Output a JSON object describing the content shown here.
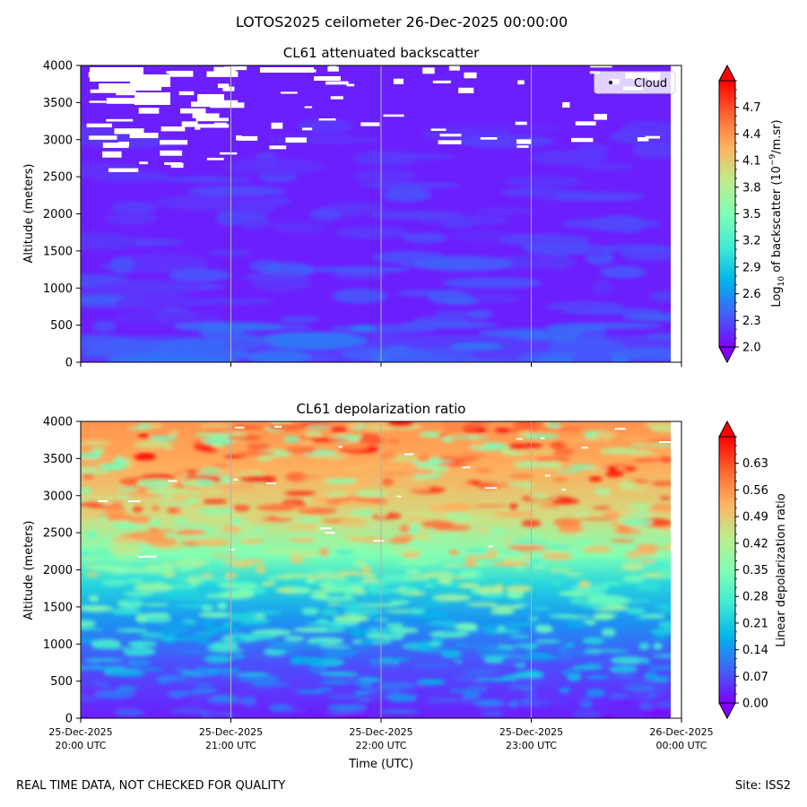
{
  "suptitle": "LOTOS2025 ceilometer 26-Dec-2025 00:00:00",
  "footer_left": "REAL TIME DATA, NOT CHECKED FOR QUALITY",
  "footer_right": "Site: ISS2",
  "xlabel": "Time (UTC)",
  "x_ticks": [
    {
      "line1": "25-Dec-2025",
      "line2": "20:00 UTC"
    },
    {
      "line1": "25-Dec-2025",
      "line2": "21:00 UTC"
    },
    {
      "line1": "25-Dec-2025",
      "line2": "22:00 UTC"
    },
    {
      "line1": "25-Dec-2025",
      "line2": "23:00 UTC"
    },
    {
      "line1": "26-Dec-2025",
      "line2": "00:00 UTC"
    }
  ],
  "chart_data": [
    {
      "type": "heatmap",
      "title": "CL61 attenuated backscatter",
      "ylabel": "Altitude (meters)",
      "xlim": [
        "25-Dec-2025 20:00",
        "26-Dec-2025 00:00"
      ],
      "ylim": [
        0,
        4000
      ],
      "y_ticks": [
        0,
        500,
        1000,
        1500,
        2000,
        2500,
        3000,
        3500,
        4000
      ],
      "grid": "vertical lines at hourly ticks",
      "legend": {
        "entries": [
          "Cloud"
        ],
        "placement": "upper right"
      },
      "colorbar": {
        "label_prefix": "Log",
        "label_sub": "10",
        "label_mid": " of backscatter (10",
        "label_sup": "−9",
        "label_suffix": "/m.sr)",
        "range": [
          2.0,
          5.0
        ],
        "ticks": [
          "2.0",
          "2.3",
          "2.6",
          "2.9",
          "3.2",
          "3.5",
          "3.8",
          "4.1",
          "4.4",
          "4.7"
        ],
        "colormap": "rainbow",
        "extend": "both"
      }
    },
    {
      "type": "heatmap",
      "title": "CL61 depolarization ratio",
      "ylabel": "Altitude (meters)",
      "xlim": [
        "25-Dec-2025 20:00",
        "26-Dec-2025 00:00"
      ],
      "ylim": [
        0,
        4000
      ],
      "y_ticks": [
        0,
        500,
        1000,
        1500,
        2000,
        2500,
        3000,
        3500,
        4000
      ],
      "grid": "vertical lines at hourly ticks",
      "colorbar": {
        "label": "Linear depolarization ratio",
        "range": [
          0.0,
          0.7
        ],
        "ticks": [
          "0.00",
          "0.07",
          "0.14",
          "0.21",
          "0.28",
          "0.35",
          "0.42",
          "0.49",
          "0.56",
          "0.63"
        ],
        "colormap": "rainbow",
        "extend": "both"
      }
    }
  ],
  "colors": {
    "rainbow": [
      "#8000ff",
      "#4062fa",
      "#00b5eb",
      "#40ecd4",
      "#80ffb4",
      "#c0eb8d",
      "#ffb360",
      "#ff6230",
      "#ff0000"
    ],
    "grid": "#b0b0b0"
  }
}
